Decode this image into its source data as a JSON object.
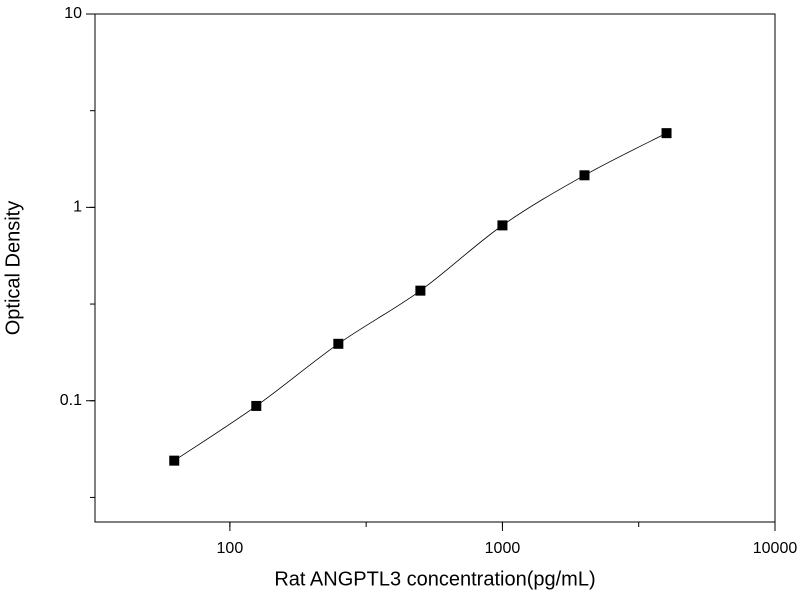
{
  "chart_data": {
    "type": "scatter",
    "x_label": "Rat ANGPTL3 concentration(pg/mL)",
    "y_label": "Optical Density",
    "x_scale": "log",
    "y_scale": "log",
    "xlim": [
      32,
      10000
    ],
    "ylim": [
      0.0236,
      10
    ],
    "xticks": [
      100,
      1000,
      10000
    ],
    "yticks": [
      0.1,
      1,
      10
    ],
    "series": [
      {
        "color": "#000000",
        "x": [
          62.5,
          125,
          250,
          500,
          1000,
          2000,
          4000
        ],
        "values": [
          0.049,
          0.094,
          0.197,
          0.371,
          0.807,
          1.465,
          2.42
        ]
      }
    ]
  }
}
